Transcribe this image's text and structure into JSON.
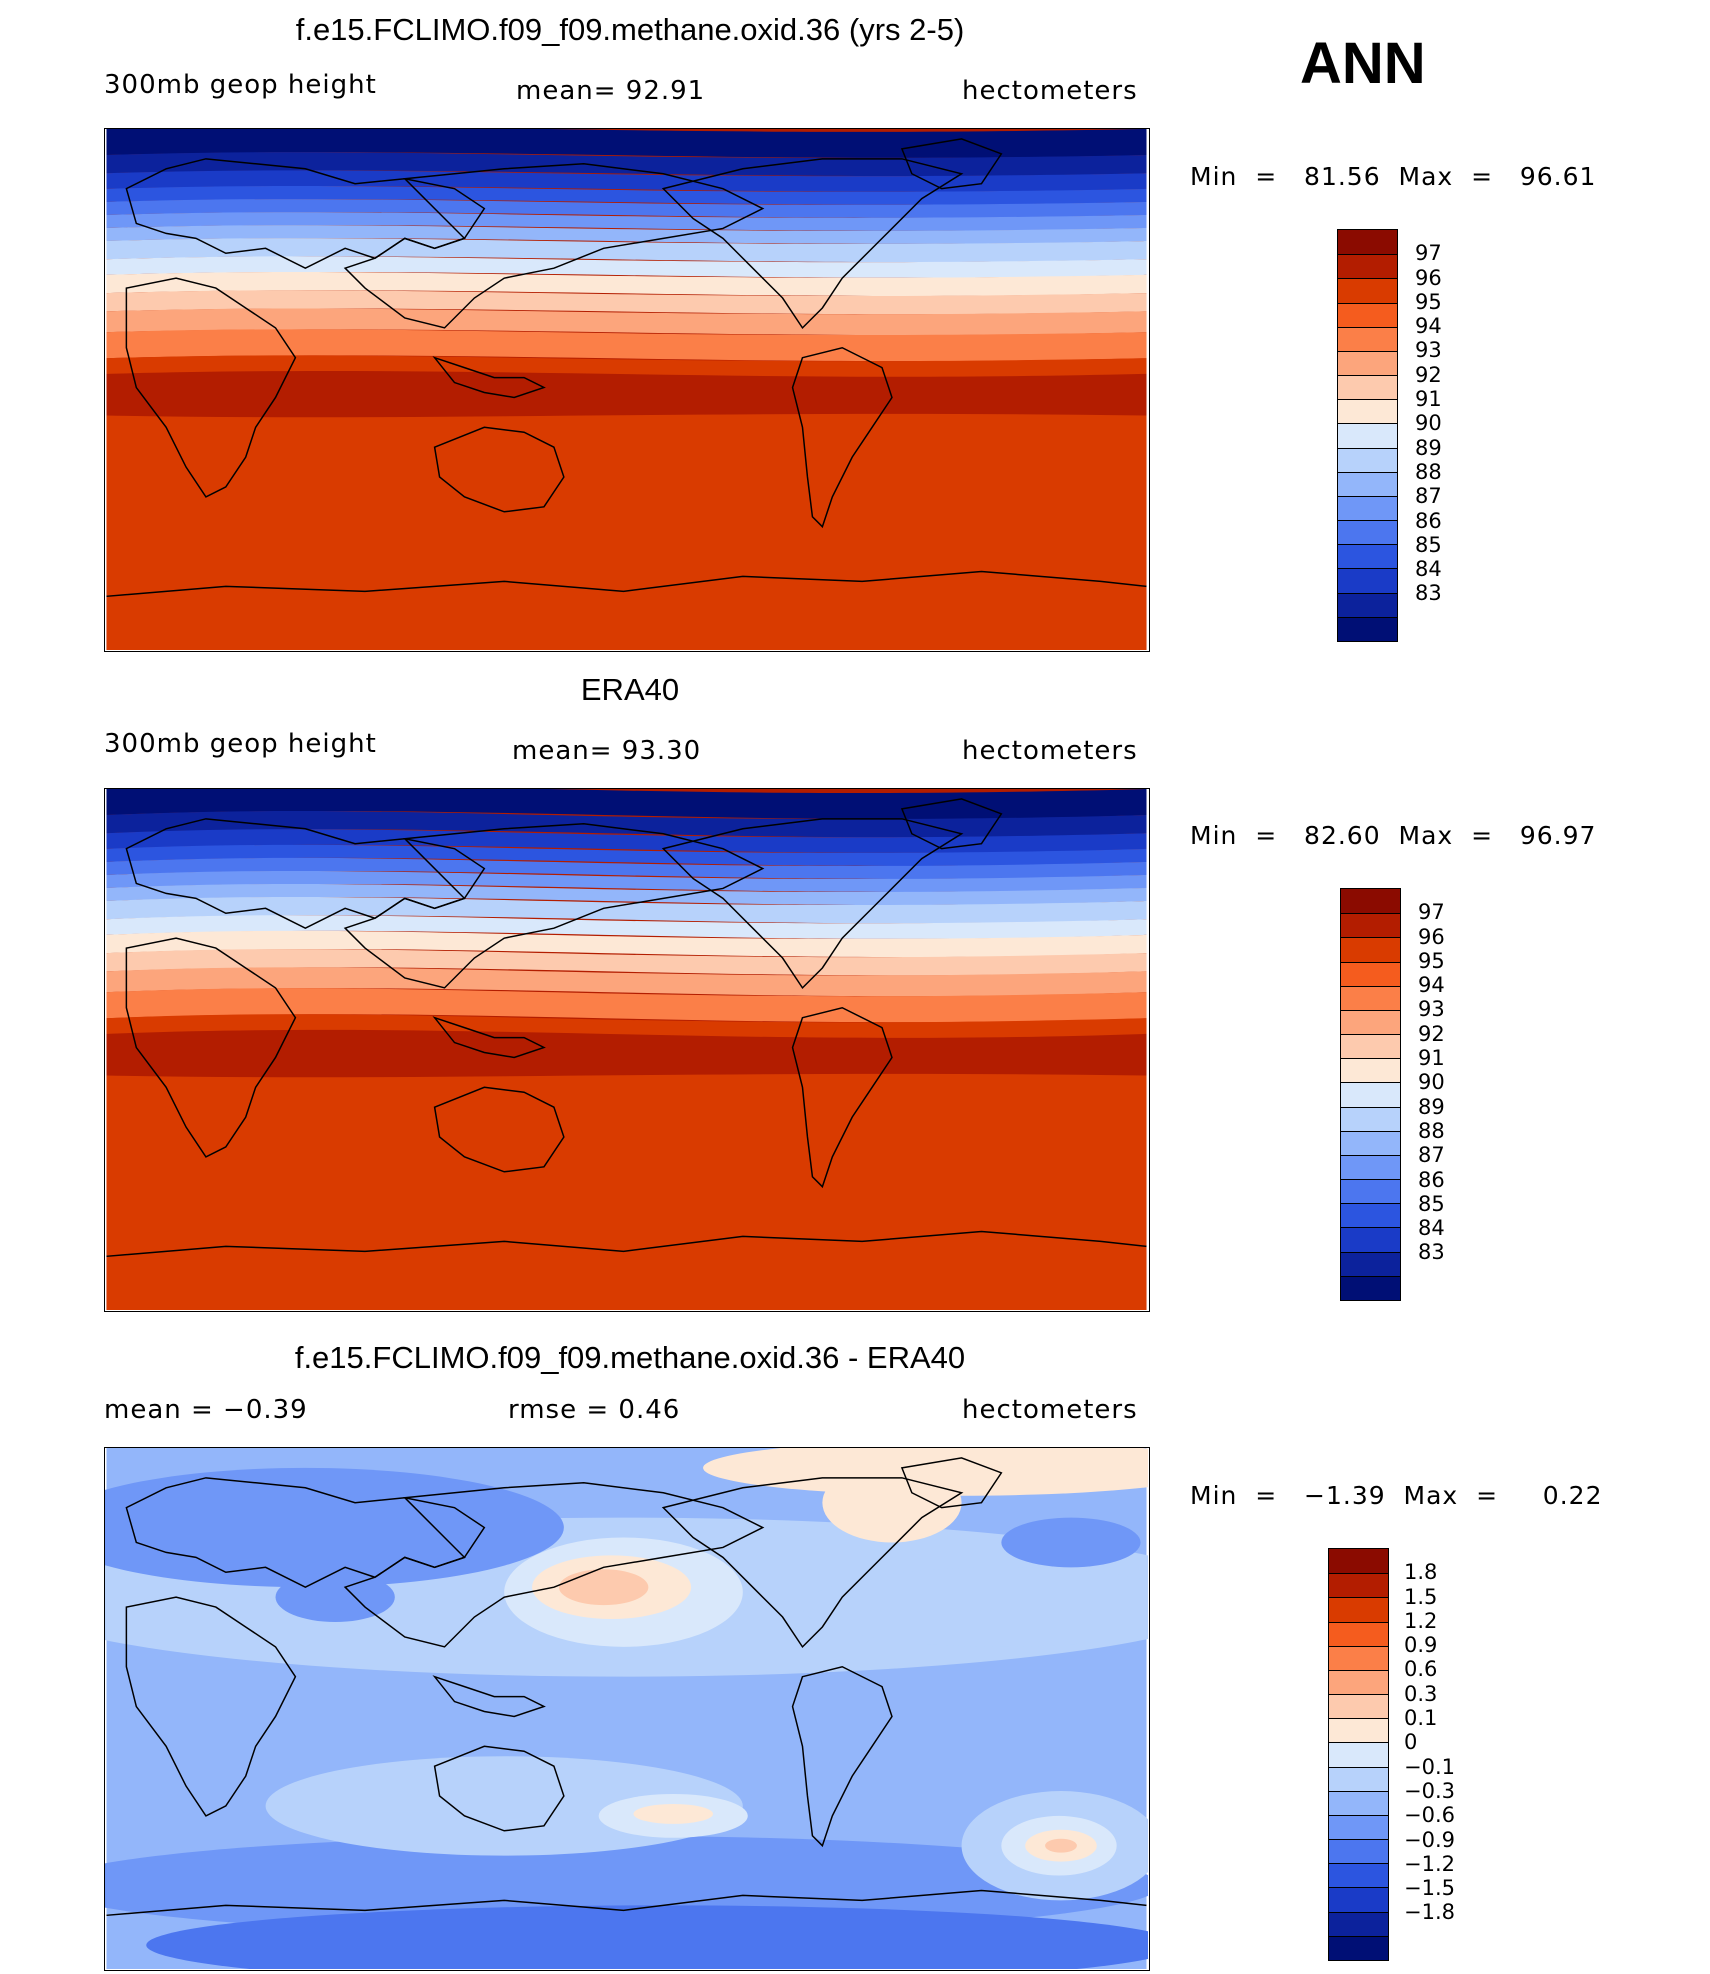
{
  "season": "ANN",
  "panels": [
    {
      "id": "model",
      "title": "f.e15.FCLIMO.f09_f09.methane.oxid.36 (yrs 2-5)",
      "left_label": "300mb  geop  height",
      "center_label": "mean=   92.91",
      "right_label": "hectometers",
      "minmax": "Min  =   81.56  Max  =   96.61",
      "colorbar_labels": [
        "97",
        "96",
        "95",
        "94",
        "93",
        "92",
        "91",
        "90",
        "89",
        "88",
        "87",
        "86",
        "85",
        "84",
        "83"
      ],
      "colorbar_colors": [
        "#8b0b00",
        "#b31d00",
        "#d93b00",
        "#f55c1e",
        "#fb7f48",
        "#fca57c",
        "#fdcaae",
        "#fde8d6",
        "#d9e8fb",
        "#b7d2fb",
        "#93b6fa",
        "#6f97f7",
        "#4c76ef",
        "#2c55e0",
        "#1a3bc7",
        "#0c229c",
        "#000f75"
      ]
    },
    {
      "id": "obs",
      "title": "ERA40",
      "left_label": "300mb  geop  height",
      "center_label": "mean=   93.30",
      "right_label": "hectometers",
      "minmax": "Min  =   82.60  Max  =   96.97",
      "colorbar_labels": [
        "97",
        "96",
        "95",
        "94",
        "93",
        "92",
        "91",
        "90",
        "89",
        "88",
        "87",
        "86",
        "85",
        "84",
        "83"
      ],
      "colorbar_colors": [
        "#8b0b00",
        "#b31d00",
        "#d93b00",
        "#f55c1e",
        "#fb7f48",
        "#fca57c",
        "#fdcaae",
        "#fde8d6",
        "#d9e8fb",
        "#b7d2fb",
        "#93b6fa",
        "#6f97f7",
        "#4c76ef",
        "#2c55e0",
        "#1a3bc7",
        "#0c229c",
        "#000f75"
      ]
    },
    {
      "id": "diff",
      "title": "f.e15.FCLIMO.f09_f09.methane.oxid.36 - ERA40",
      "left_label": "mean  =    −0.39",
      "center_label": "rmse  =     0.46",
      "right_label": "hectometers",
      "minmax": "Min  =   −1.39  Max  =     0.22",
      "colorbar_labels": [
        "1.8",
        "1.5",
        "1.2",
        "0.9",
        "0.6",
        "0.3",
        "0.1",
        "0",
        "−0.1",
        "−0.3",
        "−0.6",
        "−0.9",
        "−1.2",
        "−1.5",
        "−1.8"
      ],
      "colorbar_colors": [
        "#8b0b00",
        "#b31d00",
        "#d93b00",
        "#f55c1e",
        "#fb7f48",
        "#fca57c",
        "#fdcaae",
        "#fde8d6",
        "#d9e8fb",
        "#b7d2fb",
        "#93b6fa",
        "#6f97f7",
        "#4c76ef",
        "#2c55e0",
        "#1a3bc7",
        "#0c229c",
        "#000f75"
      ]
    }
  ]
}
